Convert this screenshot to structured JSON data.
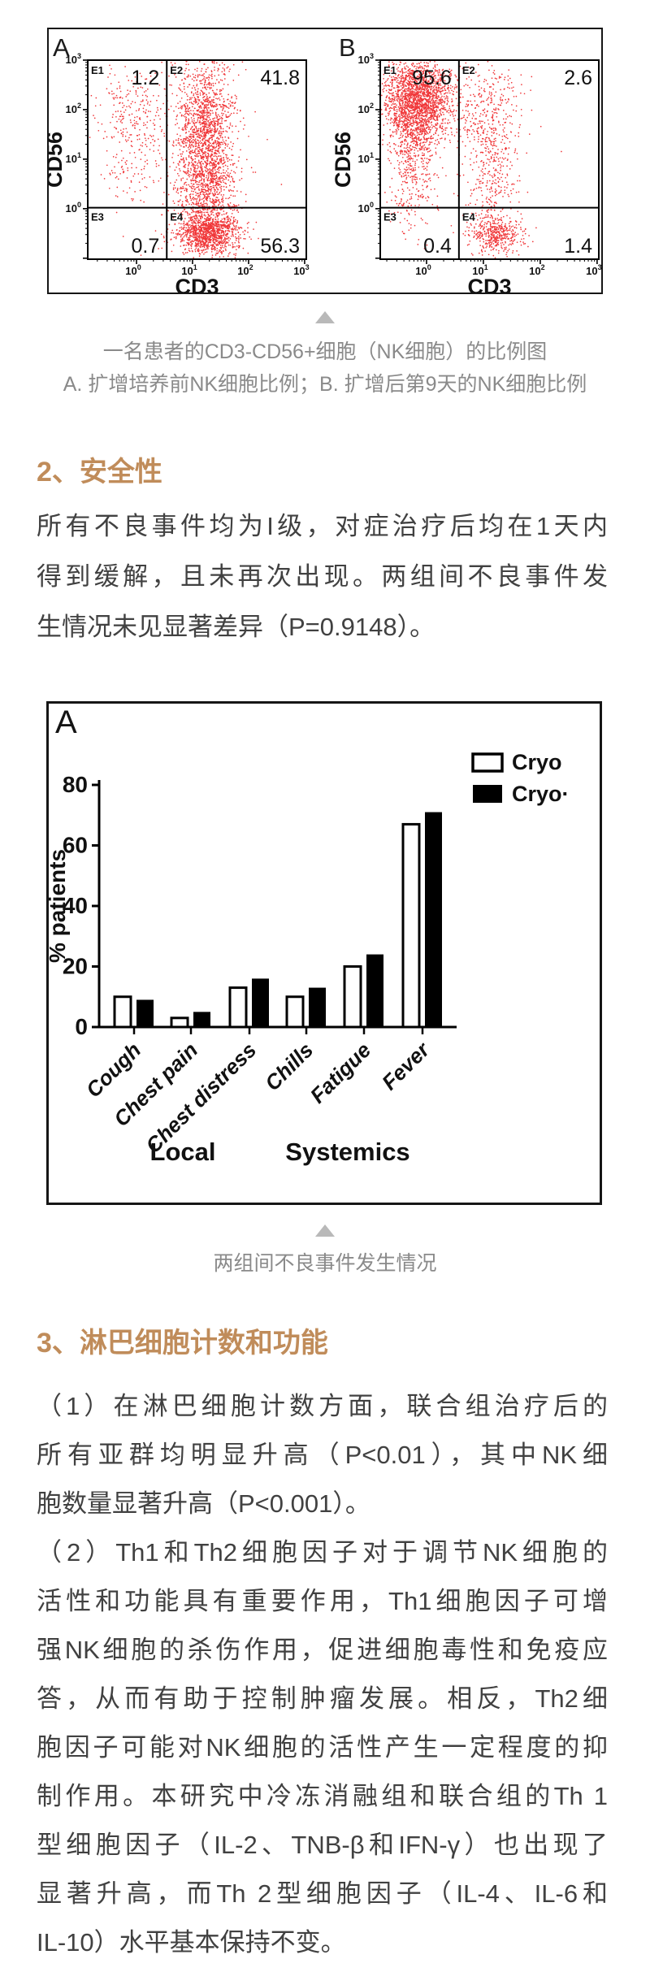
{
  "colors": {
    "heading": "#c08c5a",
    "body_text": "#414141",
    "caption_text": "#8a8a8a",
    "triangle": "#b9b9b9",
    "flow_dot": "#ee2124",
    "chart_ink": "#000000"
  },
  "figure1_caption": [
    "一名患者的CD3-CD56+细胞（NK细胞）的比例图",
    "A. 扩增培养前NK细胞比例；B. 扩增后第9天的NK细胞比例"
  ],
  "figure2_caption": [
    "两组间不良事件发生情况"
  ],
  "sections": [
    {
      "heading": "2、安全性",
      "paragraphs": [
        [
          "所有不良事件均为I级，对症治疗后均在1天内",
          "得到缓解，且未再次出现。两组间不良事件发",
          "生情况未见显著差异（P=0.9148）。"
        ]
      ]
    },
    {
      "heading": "3、淋巴细胞计数和功能",
      "paragraphs": [
        [
          "（1）在淋巴细胞计数方面，联合组治疗后的",
          "所有亚群均明显升高（P<0.01），其中NK细",
          "胞数量显著升高（P<0.001）。"
        ],
        [
          "（2）Th1和Th2细胞因子对于调节NK细胞的",
          "活性和功能具有重要作用，Th1细胞因子可增",
          "强NK细胞的杀伤作用，促进细胞毒性和免疫应",
          "答，从而有助于控制肿瘤发展。相反，Th2细",
          "胞因子可能对NK细胞的活性产生一定程度的抑",
          "制作用。本研究中冷冻消融组和联合组的Th 1",
          "型细胞因子（IL-2、TNB-β和IFN-γ）也出现了",
          "显著升高，而Th 2型细胞因子（IL-4、IL-6和",
          "IL-10）水平基本保持不变。"
        ]
      ]
    }
  ],
  "chart_data": [
    {
      "type": "scatter",
      "name": "flow-cytometry-panel-A",
      "panel_label": "A",
      "xlabel": "CD3",
      "ylabel": "CD56",
      "x_tick_exponents": [
        0,
        1,
        2,
        3
      ],
      "y_tick_exponents": [
        0,
        1,
        2,
        3
      ],
      "x_range_decades": [
        -0.87,
        3.03
      ],
      "y_range_decades": [
        -1.02,
        3.0
      ],
      "divider_decades": [
        0.54,
        0.02
      ],
      "quadrants": [
        {
          "id": "E1",
          "value": "1.2"
        },
        {
          "id": "E2",
          "value": "41.8"
        },
        {
          "id": "E3",
          "value": "0.7"
        },
        {
          "id": "E4",
          "value": "56.3"
        }
      ],
      "dot_color": "#ee2124",
      "seed": 11,
      "clusters": [
        [
          -0.06,
          1.89,
          0.3,
          0.52,
          260
        ],
        [
          -0.06,
          0.74,
          0.26,
          0.4,
          70
        ],
        [
          1.22,
          1.56,
          0.25,
          0.8,
          1600
        ],
        [
          1.25,
          0.41,
          0.27,
          0.42,
          550
        ],
        [
          1.29,
          -0.49,
          0.28,
          0.2,
          1150
        ],
        [
          1.05,
          0.9,
          0.9,
          1.15,
          90
        ]
      ]
    },
    {
      "type": "scatter",
      "name": "flow-cytometry-panel-B",
      "panel_label": "B",
      "xlabel": "CD3",
      "ylabel": "CD56",
      "x_tick_exponents": [
        0,
        1,
        2,
        3
      ],
      "y_tick_exponents": [
        0,
        1,
        2,
        3
      ],
      "x_range_decades": [
        -0.814,
        3.03
      ],
      "y_range_decades": [
        -1.02,
        3.0
      ],
      "divider_decades": [
        0.57,
        0.02
      ],
      "quadrants": [
        {
          "id": "E1",
          "value": "95.6"
        },
        {
          "id": "E2",
          "value": "2.6"
        },
        {
          "id": "E3",
          "value": "0.4"
        },
        {
          "id": "E4",
          "value": "1.4"
        }
      ],
      "dot_color": "#ee2124",
      "seed": 23,
      "clusters": [
        [
          -0.16,
          2.21,
          0.31,
          0.4,
          2000
        ],
        [
          -0.21,
          1.39,
          0.2,
          0.47,
          480
        ],
        [
          -0.26,
          0.3,
          0.18,
          0.5,
          130
        ],
        [
          1.13,
          1.72,
          0.27,
          0.66,
          430
        ],
        [
          1.13,
          0.45,
          0.2,
          0.42,
          160
        ],
        [
          1.21,
          -0.54,
          0.23,
          0.2,
          430
        ],
        [
          0.5,
          0.9,
          1.0,
          1.1,
          60
        ]
      ]
    },
    {
      "type": "bar",
      "name": "adverse-events-bar-chart",
      "title": "A",
      "categories": [
        "Cough",
        "Chest pain",
        "Chest distress",
        "Chills",
        "Fatigue",
        "Fever"
      ],
      "series": [
        {
          "name": "Cryo",
          "fill": "#ffffff",
          "values": [
            10,
            3,
            13,
            10,
            20,
            67
          ]
        },
        {
          "name": "Cryo·",
          "fill": "#000000",
          "values": [
            9,
            5,
            16,
            13,
            24,
            71
          ]
        }
      ],
      "ylabel": "% patients",
      "ylim": [
        0,
        80
      ],
      "yticks": [
        0,
        20,
        40,
        60,
        80
      ],
      "groups": [
        {
          "label": "Local",
          "categories": [
            "Cough",
            "Chest pain",
            "Chest distress"
          ]
        },
        {
          "label": "Systemics",
          "categories": [
            "Chills",
            "Fatigue",
            "Fever"
          ]
        }
      ],
      "legend_position": "top-right",
      "grid": false
    }
  ]
}
